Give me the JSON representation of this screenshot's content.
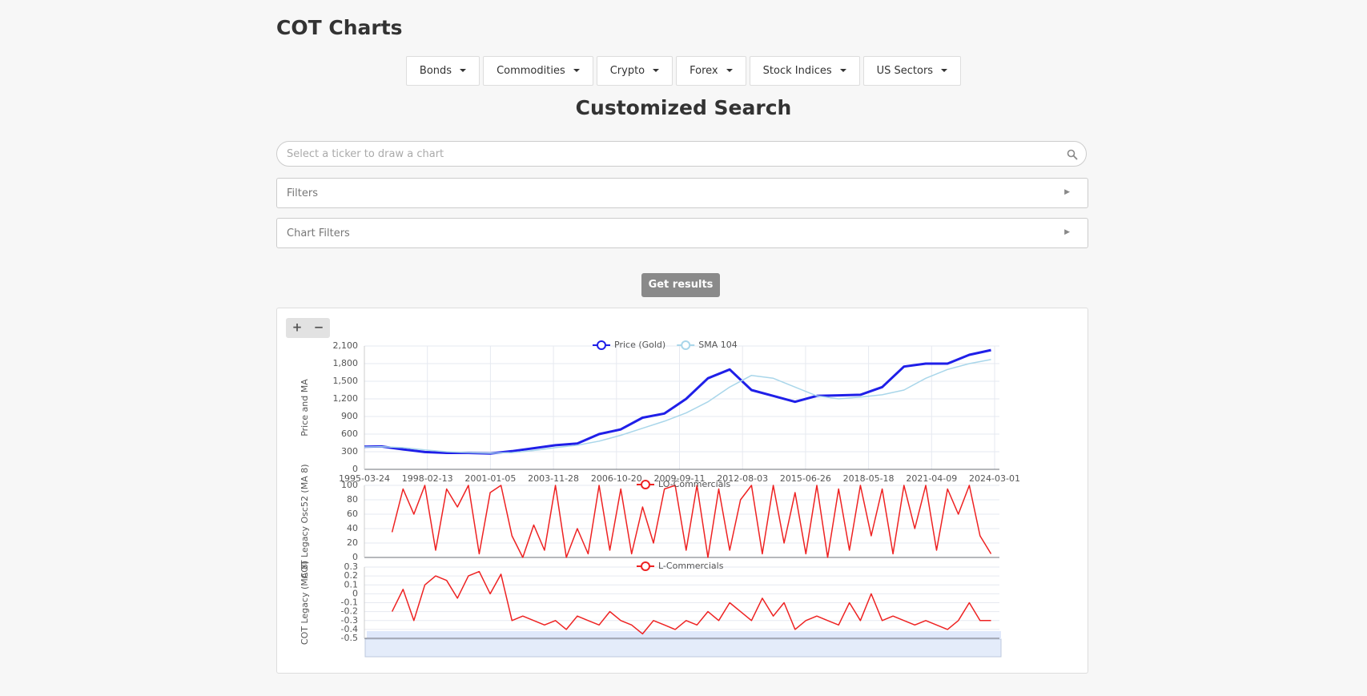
{
  "header": {
    "title": "COT Charts"
  },
  "nav": {
    "items": [
      "Bonds",
      "Commodities",
      "Crypto",
      "Forex",
      "Stock Indices",
      "US Sectors"
    ]
  },
  "search": {
    "heading": "Customized Search",
    "placeholder": "Select a ticker to draw a chart"
  },
  "panels": [
    "Filters",
    "Chart Filters"
  ],
  "button": "Get results",
  "zoom": [
    "+",
    "−"
  ],
  "chart_data": [
    {
      "type": "line",
      "y_label": "Price and MA",
      "x": [
        "1995-03-24",
        "1996-01-01",
        "1997-01-01",
        "1998-01-01",
        "1999-01-01",
        "2000-01-01",
        "2001-01-01",
        "2002-01-01",
        "2003-01-01",
        "2004-01-01",
        "2005-01-01",
        "2006-01-01",
        "2007-01-01",
        "2008-01-01",
        "2009-01-01",
        "2010-01-01",
        "2011-01-01",
        "2012-01-01",
        "2013-01-01",
        "2014-01-01",
        "2015-01-01",
        "2016-01-01",
        "2017-01-01",
        "2018-01-01",
        "2019-01-01",
        "2020-01-01",
        "2021-01-01",
        "2022-01-01",
        "2023-01-01",
        "2024-01-01"
      ],
      "series": [
        {
          "name": "Price (Gold)",
          "color": "#1f1fe8",
          "width": 3,
          "values": [
            385,
            390,
            340,
            295,
            280,
            280,
            270,
            310,
            360,
            410,
            440,
            600,
            680,
            880,
            950,
            1200,
            1550,
            1700,
            1350,
            1250,
            1150,
            1250,
            1260,
            1270,
            1400,
            1750,
            1800,
            1800,
            1950,
            2030
          ]
        },
        {
          "name": "SMA 104",
          "color": "#a9d6ea",
          "width": 1.5,
          "values": [
            380,
            385,
            370,
            330,
            300,
            285,
            275,
            285,
            320,
            370,
            410,
            480,
            580,
            700,
            820,
            960,
            1150,
            1400,
            1600,
            1550,
            1400,
            1250,
            1200,
            1230,
            1270,
            1350,
            1550,
            1700,
            1800,
            1870
          ]
        }
      ],
      "xlim": [
        "1995-03-24",
        "2024-03-01"
      ],
      "xticks": [
        "1995-03-24",
        "1998-02-13",
        "2001-01-05",
        "2003-11-28",
        "2006-10-20",
        "2009-09-11",
        "2012-08-03",
        "2015-06-26",
        "2018-05-18",
        "2021-04-09",
        "2024-03-01"
      ],
      "ylim": [
        0,
        2100
      ],
      "yticks": [
        0,
        300,
        600,
        900,
        {
          "value": 1200,
          "label": "1,200"
        },
        {
          "value": 1500,
          "label": "1,500"
        },
        {
          "value": 1800,
          "label": "1,800"
        },
        {
          "value": 2100,
          "label": "2,100"
        }
      ],
      "grid": true
    },
    {
      "type": "line",
      "y_label": "COT Legacy Osc52 (MA 8)",
      "x": [
        "1996-07-01",
        "1997-01-01",
        "1997-07-01",
        "1998-01-01",
        "1998-07-01",
        "1999-01-01",
        "1999-07-01",
        "2000-01-01",
        "2000-07-01",
        "2001-01-01",
        "2001-07-01",
        "2002-01-01",
        "2002-07-01",
        "2003-01-01",
        "2003-07-01",
        "2004-01-01",
        "2004-07-01",
        "2005-01-01",
        "2005-07-01",
        "2006-01-01",
        "2006-07-01",
        "2007-01-01",
        "2007-07-01",
        "2008-01-01",
        "2008-07-01",
        "2009-01-01",
        "2009-07-01",
        "2010-01-01",
        "2010-07-01",
        "2011-01-01",
        "2011-07-01",
        "2012-01-01",
        "2012-07-01",
        "2013-01-01",
        "2013-07-01",
        "2014-01-01",
        "2014-07-01",
        "2015-01-01",
        "2015-07-01",
        "2016-01-01",
        "2016-07-01",
        "2017-01-01",
        "2017-07-01",
        "2018-01-01",
        "2018-07-01",
        "2019-01-01",
        "2019-07-01",
        "2020-01-01",
        "2020-07-01",
        "2021-01-01",
        "2021-07-01",
        "2022-01-01",
        "2022-07-01",
        "2023-01-01",
        "2023-07-01",
        "2024-01-01"
      ],
      "series": [
        {
          "name": "LO-Commercials",
          "color": "#ee2222",
          "width": 1.5,
          "values": [
            35,
            95,
            60,
            100,
            10,
            95,
            70,
            100,
            5,
            90,
            100,
            30,
            0,
            45,
            10,
            100,
            0,
            40,
            5,
            100,
            10,
            95,
            5,
            70,
            20,
            95,
            100,
            10,
            100,
            0,
            95,
            10,
            80,
            100,
            5,
            100,
            20,
            90,
            5,
            100,
            0,
            95,
            10,
            100,
            30,
            95,
            5,
            100,
            40,
            100,
            10,
            95,
            60,
            100,
            30,
            5
          ]
        }
      ],
      "xlim": [
        "1995-03-24",
        "2024-03-01"
      ],
      "ylim": [
        0,
        100
      ],
      "yticks": [
        0,
        20,
        40,
        60,
        80,
        100
      ],
      "grid": true
    },
    {
      "type": "line",
      "y_label": "COT Legacy (MA 8)",
      "x": [
        "1996-07-01",
        "1997-01-01",
        "1997-07-01",
        "1998-01-01",
        "1998-07-01",
        "1999-01-01",
        "1999-07-01",
        "2000-01-01",
        "2000-07-01",
        "2001-01-01",
        "2001-07-01",
        "2002-01-01",
        "2002-07-01",
        "2003-01-01",
        "2003-07-01",
        "2004-01-01",
        "2004-07-01",
        "2005-01-01",
        "2005-07-01",
        "2006-01-01",
        "2006-07-01",
        "2007-01-01",
        "2007-07-01",
        "2008-01-01",
        "2008-07-01",
        "2009-01-01",
        "2009-07-01",
        "2010-01-01",
        "2010-07-01",
        "2011-01-01",
        "2011-07-01",
        "2012-01-01",
        "2012-07-01",
        "2013-01-01",
        "2013-07-01",
        "2014-01-01",
        "2014-07-01",
        "2015-01-01",
        "2015-07-01",
        "2016-01-01",
        "2016-07-01",
        "2017-01-01",
        "2017-07-01",
        "2018-01-01",
        "2018-07-01",
        "2019-01-01",
        "2019-07-01",
        "2020-01-01",
        "2020-07-01",
        "2021-01-01",
        "2021-07-01",
        "2022-01-01",
        "2022-07-01",
        "2023-01-01",
        "2023-07-01",
        "2024-01-01"
      ],
      "series": [
        {
          "name": "L-Commercials",
          "color": "#ee2222",
          "width": 1.5,
          "values": [
            -0.2,
            0.05,
            -0.3,
            0.1,
            0.2,
            0.15,
            -0.05,
            0.2,
            0.25,
            0,
            0.22,
            -0.3,
            -0.25,
            -0.3,
            -0.35,
            -0.3,
            -0.4,
            -0.25,
            -0.3,
            -0.35,
            -0.2,
            -0.3,
            -0.35,
            -0.45,
            -0.3,
            -0.35,
            -0.4,
            -0.3,
            -0.35,
            -0.2,
            -0.3,
            -0.1,
            -0.2,
            -0.3,
            -0.05,
            -0.25,
            -0.1,
            -0.4,
            -0.3,
            -0.25,
            -0.3,
            -0.35,
            -0.1,
            -0.3,
            0,
            -0.3,
            -0.25,
            -0.3,
            -0.35,
            -0.3,
            -0.35,
            -0.4,
            -0.3,
            -0.1,
            -0.3,
            -0.3
          ]
        }
      ],
      "xlim": [
        "1995-03-24",
        "2024-03-01"
      ],
      "ylim": [
        -0.5,
        0.3
      ],
      "yticks": [
        -0.5,
        -0.4,
        -0.3,
        -0.2,
        -0.1,
        0,
        0.1,
        0.2,
        0.3
      ],
      "grid": true
    }
  ]
}
